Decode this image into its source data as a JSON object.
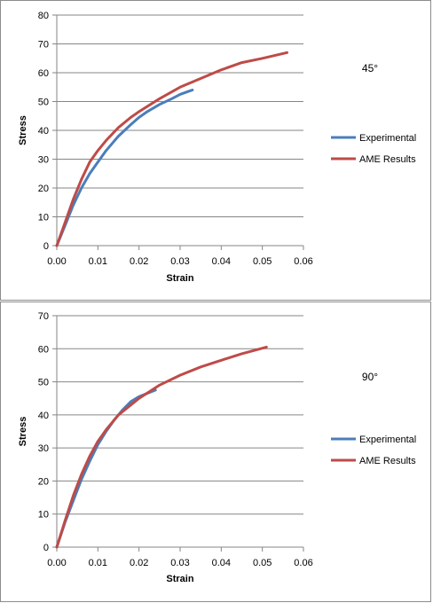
{
  "chart_data": [
    {
      "type": "line",
      "annotation": "45°",
      "xlabel": "Strain",
      "ylabel": "Stress",
      "xlim": [
        0,
        0.06
      ],
      "ylim": [
        0,
        80
      ],
      "xticks": [
        "0.00",
        "0.01",
        "0.02",
        "0.03",
        "0.04",
        "0.05",
        "0.06"
      ],
      "yticks": [
        "0",
        "10",
        "20",
        "30",
        "40",
        "50",
        "60",
        "70",
        "80"
      ],
      "grid": "horizontal",
      "legend": "right",
      "series": [
        {
          "name": "Experimental",
          "color": "#4a7ebb",
          "x": [
            0,
            0.002,
            0.004,
            0.006,
            0.008,
            0.01,
            0.012,
            0.015,
            0.018,
            0.02,
            0.022,
            0.025,
            0.028,
            0.03,
            0.032,
            0.033
          ],
          "y": [
            0,
            7,
            14,
            20,
            25,
            29,
            33,
            38,
            42,
            44.5,
            46.5,
            49,
            51,
            52.5,
            53.5,
            54
          ]
        },
        {
          "name": "AME Results",
          "color": "#be4b48",
          "x": [
            0,
            0.002,
            0.004,
            0.006,
            0.008,
            0.01,
            0.012,
            0.015,
            0.018,
            0.02,
            0.025,
            0.03,
            0.035,
            0.04,
            0.045,
            0.05,
            0.056
          ],
          "y": [
            0,
            8,
            16,
            23,
            29,
            33,
            36.5,
            41,
            44.5,
            46.5,
            51,
            55,
            58,
            61,
            63.5,
            65,
            67
          ]
        }
      ]
    },
    {
      "type": "line",
      "annotation": "90°",
      "xlabel": "Strain",
      "ylabel": "Stress",
      "xlim": [
        0,
        0.06
      ],
      "ylim": [
        0,
        70
      ],
      "xticks": [
        "0.00",
        "0.01",
        "0.02",
        "0.03",
        "0.04",
        "0.05",
        "0.06"
      ],
      "yticks": [
        "0",
        "10",
        "20",
        "30",
        "40",
        "50",
        "60",
        "70"
      ],
      "grid": "horizontal",
      "legend": "right",
      "series": [
        {
          "name": "Experimental",
          "color": "#4a7ebb",
          "x": [
            0,
            0.002,
            0.004,
            0.006,
            0.008,
            0.01,
            0.012,
            0.014,
            0.016,
            0.018,
            0.02,
            0.022,
            0.024
          ],
          "y": [
            0,
            7.5,
            14,
            20.5,
            26,
            31,
            35,
            38.5,
            41.5,
            44,
            45.5,
            46.5,
            47.5
          ]
        },
        {
          "name": "AME Results",
          "color": "#be4b48",
          "x": [
            0,
            0.002,
            0.004,
            0.006,
            0.008,
            0.01,
            0.012,
            0.015,
            0.018,
            0.02,
            0.025,
            0.03,
            0.035,
            0.04,
            0.045,
            0.051
          ],
          "y": [
            0,
            8,
            15.5,
            22,
            27.5,
            32,
            35.5,
            40,
            43,
            45,
            49,
            52,
            54.5,
            56.5,
            58.5,
            60.5
          ]
        }
      ]
    }
  ]
}
